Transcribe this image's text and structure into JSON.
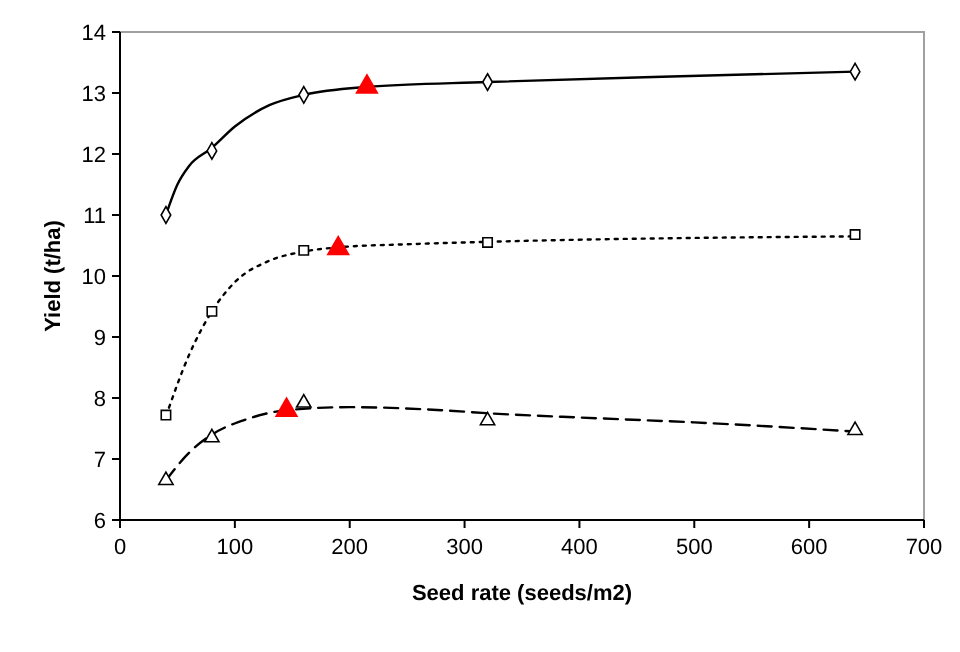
{
  "chart_data": {
    "type": "scatter",
    "xlabel": "Seed rate (seeds/m2)",
    "ylabel": "Yield (t/ha)",
    "xlim": [
      0,
      700
    ],
    "xticks": [
      0,
      100,
      200,
      300,
      400,
      500,
      600,
      700
    ],
    "ylim": [
      6,
      14
    ],
    "yticks": [
      6,
      7,
      8,
      9,
      10,
      11,
      12,
      13,
      14
    ],
    "grid": false,
    "series": [
      {
        "type": "line",
        "color": "#000000",
        "line_style": "solid",
        "marker": "none",
        "x": [
          40,
          50,
          60,
          80,
          100,
          130,
          160,
          215,
          320,
          480,
          640
        ],
        "values": [
          11.0,
          11.5,
          11.8,
          12.1,
          12.45,
          12.8,
          12.97,
          13.1,
          13.18,
          13.27,
          13.35
        ]
      },
      {
        "type": "line",
        "color": "#000000",
        "line_style": "dotted",
        "marker": "none",
        "x": [
          40,
          60,
          80,
          100,
          130,
          160,
          190,
          250,
          320,
          640
        ],
        "values": [
          7.7,
          8.7,
          9.42,
          9.9,
          10.25,
          10.4,
          10.47,
          10.52,
          10.56,
          10.65
        ]
      },
      {
        "type": "line",
        "color": "#000000",
        "line_style": "dashed",
        "marker": "none",
        "x": [
          40,
          60,
          80,
          110,
          145,
          200,
          280,
          320,
          400,
          500,
          640
        ],
        "values": [
          6.65,
          7.1,
          7.4,
          7.65,
          7.8,
          7.85,
          7.8,
          7.75,
          7.68,
          7.6,
          7.45
        ]
      },
      {
        "color": "#000000",
        "marker": "diamond",
        "x": [
          40,
          80,
          160,
          320,
          640
        ],
        "values": [
          11.0,
          12.05,
          12.97,
          13.18,
          13.35
        ]
      },
      {
        "color": "#000000",
        "marker": "square",
        "x": [
          40,
          80,
          160,
          320,
          640
        ],
        "values": [
          7.72,
          9.42,
          10.42,
          10.55,
          10.68
        ]
      },
      {
        "color": "#000000",
        "marker": "triangle",
        "x": [
          40,
          80,
          160,
          320,
          640
        ],
        "values": [
          6.65,
          7.35,
          7.92,
          7.63,
          7.47
        ]
      },
      {
        "color": "#ff0000",
        "marker": "triangle",
        "x": [
          215,
          190,
          145
        ],
        "values": [
          13.1,
          10.45,
          7.8
        ]
      }
    ]
  }
}
